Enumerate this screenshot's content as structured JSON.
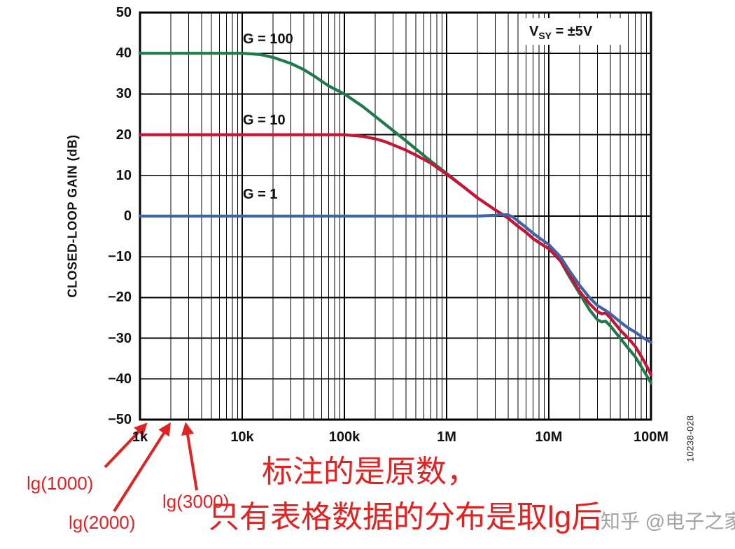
{
  "chart_data": {
    "type": "line",
    "x_axis": {
      "scale": "log",
      "min": 1000,
      "max": 100000000,
      "tick_labels": [
        "1k",
        "10k",
        "100k",
        "1M",
        "10M",
        "100M"
      ]
    },
    "y_axis": {
      "label": "CLOSED-LOOP GAIN (dB)",
      "min": -50,
      "max": 50,
      "tick_step": 10,
      "tick_labels": [
        "50",
        "40",
        "30",
        "20",
        "10",
        "0",
        "−10",
        "−20",
        "−30",
        "−40",
        "−50"
      ]
    },
    "grid": "log-minor-and-major",
    "legend_position": "inline-curve-labels",
    "series": [
      {
        "name": "G = 100",
        "color": "#1f7a4b",
        "points": [
          [
            1000,
            40
          ],
          [
            5000,
            40
          ],
          [
            10000,
            40
          ],
          [
            15000,
            39.7
          ],
          [
            20000,
            39
          ],
          [
            30000,
            37.5
          ],
          [
            40000,
            36
          ],
          [
            50000,
            34.5
          ],
          [
            70000,
            32
          ],
          [
            100000,
            30
          ],
          [
            150000,
            27
          ],
          [
            200000,
            24.5
          ],
          [
            300000,
            21
          ],
          [
            400000,
            18.5
          ],
          [
            500000,
            16.5
          ],
          [
            700000,
            13.5
          ],
          [
            1000000,
            10.5
          ],
          [
            1500000,
            7
          ],
          [
            2000000,
            4.5
          ],
          [
            3000000,
            1.5
          ],
          [
            4000000,
            -0.5
          ],
          [
            5000000,
            -2.5
          ],
          [
            6000000,
            -4
          ],
          [
            7000000,
            -5.5
          ],
          [
            8000000,
            -6.5
          ],
          [
            10000000,
            -8
          ],
          [
            13000000,
            -11
          ],
          [
            16000000,
            -15
          ],
          [
            20000000,
            -19
          ],
          [
            25000000,
            -23
          ],
          [
            30000000,
            -25.5
          ],
          [
            33000000,
            -26
          ],
          [
            36000000,
            -25.8
          ],
          [
            40000000,
            -27
          ],
          [
            50000000,
            -30
          ],
          [
            60000000,
            -32.5
          ],
          [
            70000000,
            -34.5
          ],
          [
            85000000,
            -38
          ],
          [
            100000000,
            -41
          ]
        ]
      },
      {
        "name": "G = 10",
        "color": "#c81236",
        "points": [
          [
            1000,
            20
          ],
          [
            50000,
            20
          ],
          [
            100000,
            20
          ],
          [
            150000,
            19.6
          ],
          [
            200000,
            19
          ],
          [
            250000,
            18.3
          ],
          [
            300000,
            17.5
          ],
          [
            400000,
            16.2
          ],
          [
            500000,
            15
          ],
          [
            700000,
            13
          ],
          [
            1000000,
            10.3
          ],
          [
            1500000,
            7
          ],
          [
            2000000,
            4.5
          ],
          [
            3000000,
            1.5
          ],
          [
            4000000,
            -0.5
          ],
          [
            5000000,
            -2.5
          ],
          [
            6000000,
            -4
          ],
          [
            7000000,
            -5.5
          ],
          [
            8000000,
            -6.5
          ],
          [
            10000000,
            -8
          ],
          [
            13000000,
            -11
          ],
          [
            16000000,
            -14.5
          ],
          [
            20000000,
            -18.5
          ],
          [
            25000000,
            -21.5
          ],
          [
            30000000,
            -23.5
          ],
          [
            33000000,
            -24
          ],
          [
            36000000,
            -23.8
          ],
          [
            40000000,
            -25
          ],
          [
            50000000,
            -28
          ],
          [
            60000000,
            -30
          ],
          [
            70000000,
            -32
          ],
          [
            85000000,
            -35.5
          ],
          [
            100000000,
            -39
          ]
        ]
      },
      {
        "name": "G = 1",
        "color": "#3f63a6",
        "points": [
          [
            1000,
            0
          ],
          [
            1000000,
            0
          ],
          [
            2000000,
            0
          ],
          [
            3000000,
            0.2
          ],
          [
            3500000,
            0.4
          ],
          [
            4000000,
            0.3
          ],
          [
            4500000,
            -0.3
          ],
          [
            5000000,
            -1.2
          ],
          [
            6000000,
            -2.8
          ],
          [
            7000000,
            -4.2
          ],
          [
            8000000,
            -5.3
          ],
          [
            10000000,
            -7
          ],
          [
            13000000,
            -10
          ],
          [
            16000000,
            -13.5
          ],
          [
            20000000,
            -17
          ],
          [
            25000000,
            -20
          ],
          [
            30000000,
            -22
          ],
          [
            35000000,
            -23
          ],
          [
            40000000,
            -24
          ],
          [
            50000000,
            -26
          ],
          [
            60000000,
            -27.5
          ],
          [
            70000000,
            -28.5
          ],
          [
            85000000,
            -30
          ],
          [
            100000000,
            -31
          ]
        ]
      }
    ],
    "supply_note": {
      "prefix": "V",
      "sub": "SY",
      "suffix": " = ±5V"
    },
    "figure_number": "10238-028"
  },
  "annotations": {
    "accent_color": "#e02222",
    "arrows": [
      {
        "label": "lg(1000)",
        "target_hz": 1000
      },
      {
        "label": "lg(2000)",
        "target_hz": 2000
      },
      {
        "label": "lg(3000)",
        "target_hz": 3000
      }
    ],
    "caption_line1": "标注的是原数，",
    "caption_line2": "只有表格数据的分布是取lg后",
    "watermark": "知乎 @电子之家"
  }
}
